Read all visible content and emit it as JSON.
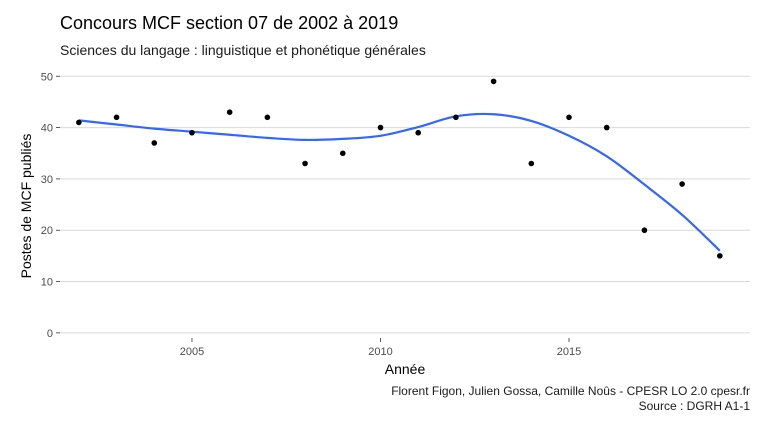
{
  "chart_data": {
    "type": "scatter",
    "title": "Concours MCF section 07 de 2002 à 2019",
    "subtitle": "Sciences du langage : linguistique et phonétique générales",
    "xlabel": "Année",
    "ylabel": "Postes de MCF publiés",
    "x_ticks": [
      2005,
      2010,
      2015
    ],
    "y_ticks": [
      0,
      10,
      20,
      30,
      40,
      50
    ],
    "xlim": [
      2001.5,
      2019.8
    ],
    "ylim": [
      -1,
      52
    ],
    "grid": "horizontal",
    "points": {
      "x": [
        2002,
        2003,
        2004,
        2005,
        2006,
        2007,
        2008,
        2009,
        2010,
        2011,
        2012,
        2013,
        2014,
        2015,
        2016,
        2017,
        2018,
        2019
      ],
      "y": [
        41,
        42,
        37,
        39,
        43,
        42,
        33,
        35,
        40,
        39,
        42,
        49,
        33,
        42,
        40,
        20,
        29,
        15
      ]
    },
    "smooth_line": {
      "color": "#3366FF",
      "x": [
        2002,
        2003,
        2004,
        2005,
        2006,
        2007,
        2008,
        2009,
        2010,
        2011,
        2012,
        2013,
        2014,
        2015,
        2016,
        2017,
        2018,
        2019
      ],
      "y": [
        41.4,
        40.6,
        39.8,
        39.2,
        38.6,
        38.0,
        37.6,
        37.8,
        38.4,
        40.1,
        42.2,
        42.6,
        41.3,
        38.4,
        34.4,
        28.9,
        23.0,
        16.0
      ]
    },
    "point_color": "#000000"
  },
  "caption": {
    "line1": "Florent Figon, Julien Gossa, Camille Noûs - CPESR LO 2.0 cpesr.fr",
    "line2": "Source : DGRH A1-1"
  }
}
